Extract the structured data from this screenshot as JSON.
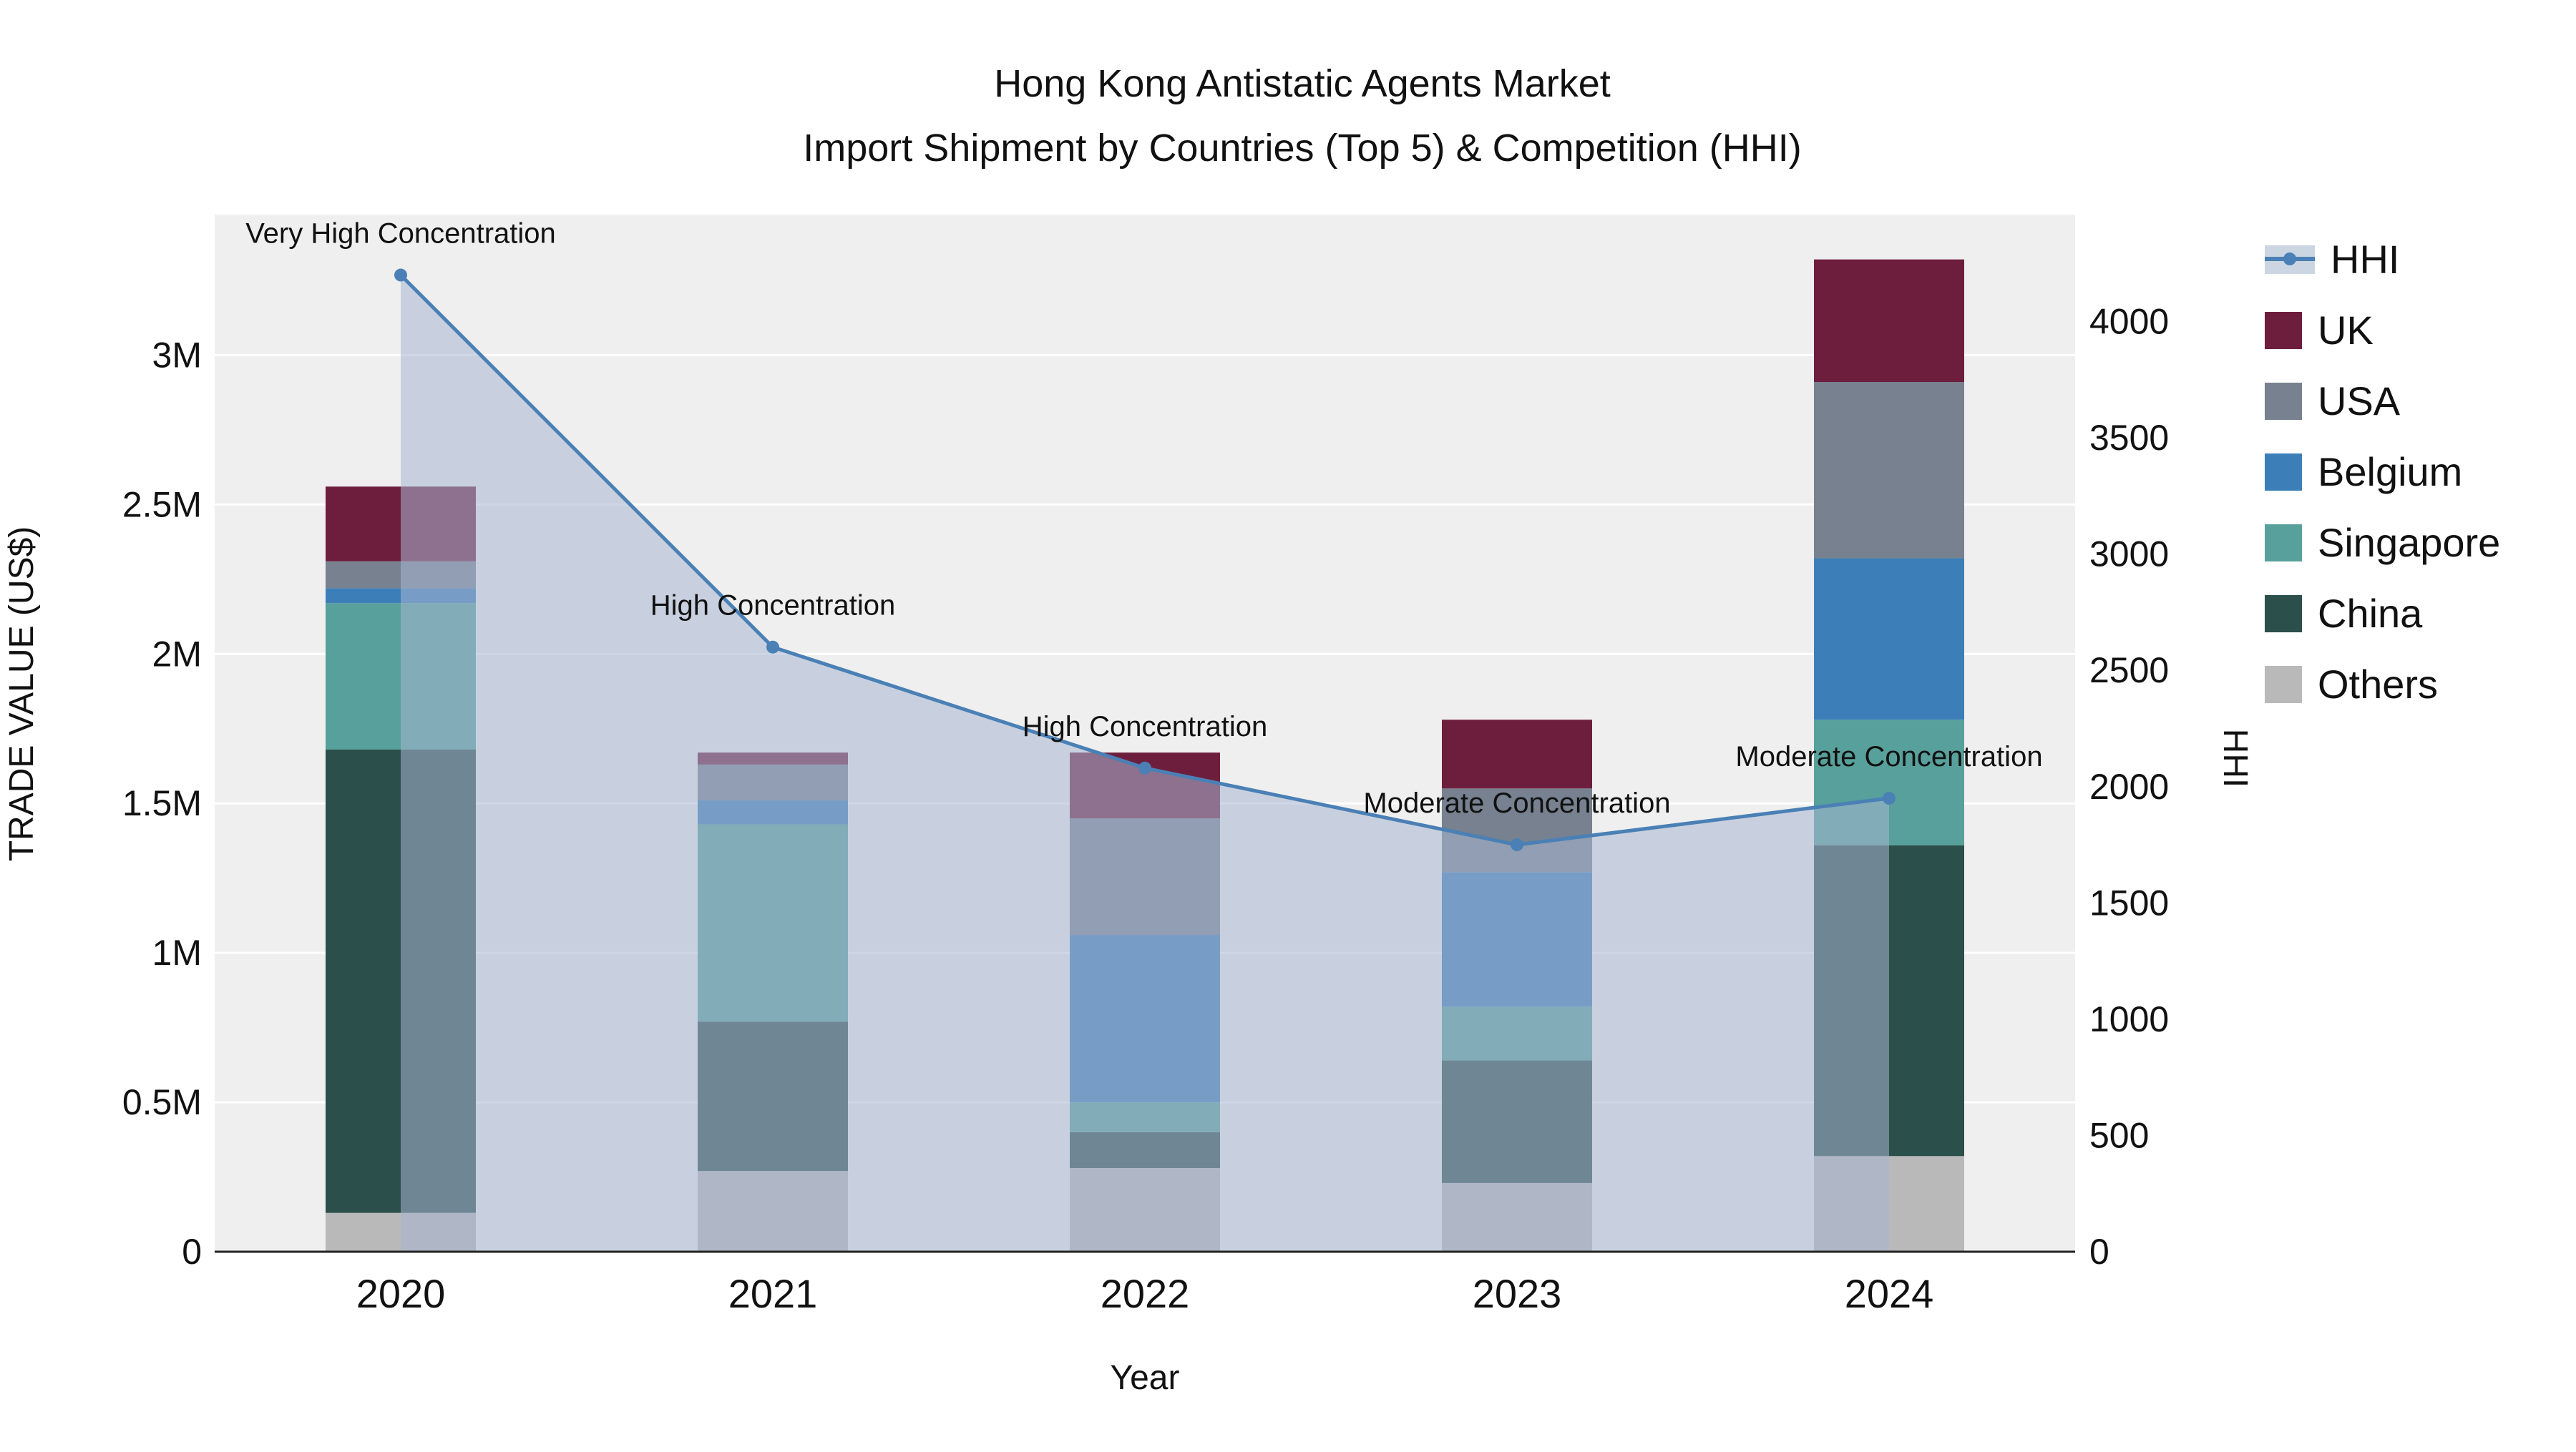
{
  "title": {
    "line1": "Hong Kong Antistatic Agents Market",
    "line2": "Import Shipment by Countries (Top 5) & Competition (HHI)"
  },
  "xlabel": "Year",
  "ylabel_left": "TRADE VALUE (US$)",
  "ylabel_right": "HHI",
  "colors": {
    "plot_background": "#efefef",
    "gridline": "#ffffff",
    "hhi_line": "#4a80b5",
    "hhi_area": "rgba(167,182,209,0.55)",
    "uk": "#6e1e3d",
    "usa": "#77818f",
    "belgium": "#3c7fb8",
    "singapore": "#58a09b",
    "china": "#2b4f4a",
    "others": "#b9b9b9"
  },
  "chart_data": {
    "type": "bar",
    "subtype": "stacked bars with HHI line+area overlay on secondary axis",
    "categories": [
      "2020",
      "2021",
      "2022",
      "2023",
      "2024"
    ],
    "value_unit": "millions US$",
    "stack_order_bottom_to_top": [
      "Others",
      "China",
      "Singapore",
      "Belgium",
      "USA",
      "UK"
    ],
    "series": [
      {
        "name": "UK",
        "color": "#6e1e3d",
        "values": [
          0.25,
          0.04,
          0.22,
          0.23,
          0.41
        ]
      },
      {
        "name": "USA",
        "color": "#77818f",
        "values": [
          0.09,
          0.12,
          0.39,
          0.28,
          0.59
        ]
      },
      {
        "name": "Belgium",
        "color": "#3c7fb8",
        "values": [
          0.05,
          0.08,
          0.56,
          0.45,
          0.54
        ]
      },
      {
        "name": "Singapore",
        "color": "#58a09b",
        "values": [
          0.49,
          0.66,
          0.1,
          0.18,
          0.42
        ]
      },
      {
        "name": "China",
        "color": "#2b4f4a",
        "values": [
          1.55,
          0.5,
          0.12,
          0.41,
          1.04
        ]
      },
      {
        "name": "Others",
        "color": "#b9b9b9",
        "values": [
          0.13,
          0.27,
          0.28,
          0.23,
          0.32
        ]
      }
    ],
    "hhi": {
      "name": "HHI",
      "values": [
        4200,
        2600,
        2080,
        1750,
        1950
      ],
      "line_color": "#4a80b5",
      "area_color": "rgba(167,182,209,0.55)"
    },
    "annotations": [
      "Very High Concentration",
      "High Concentration",
      "High Concentration",
      "Moderate Concentration",
      "Moderate Concentration"
    ],
    "yaxis_left": {
      "tick_labels": [
        "0",
        "0.5M",
        "1M",
        "1.5M",
        "2M",
        "2.5M",
        "3M"
      ],
      "tick_values": [
        0,
        0.5,
        1,
        1.5,
        2,
        2.5,
        3
      ],
      "max": 3.47
    },
    "yaxis_right": {
      "tick_labels": [
        "0",
        "500",
        "1000",
        "1500",
        "2000",
        "2500",
        "3000",
        "3500",
        "4000"
      ],
      "tick_values": [
        0,
        500,
        1000,
        1500,
        2000,
        2500,
        3000,
        3500,
        4000
      ],
      "max": 4460
    },
    "legend_order": [
      "HHI",
      "UK",
      "USA",
      "Belgium",
      "Singapore",
      "China",
      "Others"
    ],
    "grid": "horizontal white gridlines on gray plot background",
    "legend_position": "right, outside plot, top"
  }
}
